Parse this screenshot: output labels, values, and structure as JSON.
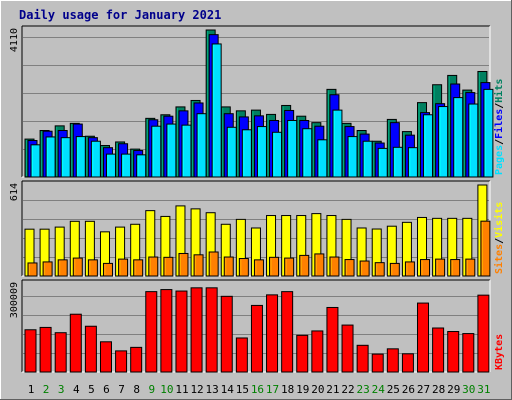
{
  "chart_data": [
    {
      "type": "bar",
      "title": "Daily usage for January 2021",
      "categories": [
        "1",
        "2",
        "3",
        "4",
        "5",
        "6",
        "7",
        "8",
        "9",
        "10",
        "11",
        "12",
        "13",
        "14",
        "15",
        "16",
        "17",
        "18",
        "19",
        "20",
        "21",
        "22",
        "23",
        "24",
        "25",
        "26",
        "27",
        "28",
        "29",
        "30",
        "31"
      ],
      "weekend_days": [
        "2",
        "3",
        "9",
        "10",
        "16",
        "17",
        "23",
        "24",
        "30",
        "31"
      ],
      "ymax_label": "4110",
      "ylim": [
        0,
        4110
      ],
      "legend": [
        "Pages",
        "Files",
        "Hits"
      ],
      "series": [
        {
          "name": "Hits",
          "color": "#008060",
          "values": [
            1060,
            1300,
            1430,
            1500,
            1140,
            880,
            980,
            780,
            1640,
            1740,
            1960,
            2140,
            4110,
            1960,
            1850,
            1870,
            1750,
            2000,
            1700,
            1520,
            2450,
            1500,
            1300,
            1000,
            1610,
            1270,
            2080,
            2580,
            2840,
            2430,
            2950
          ]
        },
        {
          "name": "Files",
          "color": "#0000ff",
          "values": [
            1020,
            1280,
            1300,
            1480,
            1100,
            820,
            930,
            740,
            1600,
            1700,
            1850,
            2070,
            3980,
            1770,
            1680,
            1710,
            1580,
            1860,
            1580,
            1420,
            2300,
            1410,
            1200,
            950,
            1520,
            1170,
            1800,
            2050,
            2600,
            2360,
            2640
          ]
        },
        {
          "name": "Pages",
          "color": "#00e0ff",
          "values": [
            900,
            1120,
            1100,
            1130,
            1000,
            640,
            640,
            620,
            1420,
            1480,
            1450,
            1770,
            3720,
            1390,
            1320,
            1410,
            1250,
            1580,
            1350,
            1040,
            1870,
            1130,
            1000,
            800,
            830,
            820,
            1740,
            1970,
            2220,
            2040,
            2450
          ]
        }
      ]
    },
    {
      "type": "bar",
      "categories": [
        "1",
        "2",
        "3",
        "4",
        "5",
        "6",
        "7",
        "8",
        "9",
        "10",
        "11",
        "12",
        "13",
        "14",
        "15",
        "16",
        "17",
        "18",
        "19",
        "20",
        "21",
        "22",
        "23",
        "24",
        "25",
        "26",
        "27",
        "28",
        "29",
        "30",
        "31"
      ],
      "ymax_label": "614",
      "ylim": [
        0,
        614
      ],
      "legend": [
        "Sites",
        "Visits"
      ],
      "series": [
        {
          "name": "Visits",
          "color": "#ffff00",
          "values": [
            316,
            316,
            330,
            369,
            369,
            298,
            330,
            349,
            441,
            402,
            473,
            453,
            427,
            349,
            382,
            324,
            408,
            408,
            408,
            421,
            408,
            382,
            324,
            317,
            336,
            362,
            395,
            389,
            389,
            389,
            614
          ]
        },
        {
          "name": "Sites",
          "color": "#ff8000",
          "values": [
            88,
            95,
            109,
            121,
            109,
            85,
            114,
            109,
            128,
            126,
            152,
            143,
            162,
            128,
            118,
            109,
            126,
            121,
            139,
            149,
            128,
            111,
            101,
            90,
            85,
            95,
            111,
            114,
            111,
            114,
            370
          ]
        }
      ]
    },
    {
      "type": "bar",
      "categories": [
        "1",
        "2",
        "3",
        "4",
        "5",
        "6",
        "7",
        "8",
        "9",
        "10",
        "11",
        "12",
        "13",
        "14",
        "15",
        "16",
        "17",
        "18",
        "19",
        "20",
        "21",
        "22",
        "23",
        "24",
        "25",
        "26",
        "27",
        "28",
        "29",
        "30",
        "31"
      ],
      "ymax_label": "300009",
      "ylim": [
        0,
        300009
      ],
      "legend": [
        "KBytes"
      ],
      "series": [
        {
          "name": "KBytes",
          "color": "#ff0000",
          "values": [
            144000,
            152000,
            134000,
            197000,
            156000,
            103000,
            72000,
            84000,
            274000,
            281000,
            276000,
            287000,
            287000,
            258000,
            116000,
            227000,
            263000,
            274000,
            125000,
            140000,
            220000,
            160000,
            91000,
            61000,
            79000,
            62000,
            235000,
            150000,
            138000,
            131000,
            262000
          ]
        }
      ]
    }
  ],
  "colors": {
    "weekday": "#00008b",
    "weekend": "#008000",
    "border_dark": "#000000",
    "grid": "#808080"
  }
}
